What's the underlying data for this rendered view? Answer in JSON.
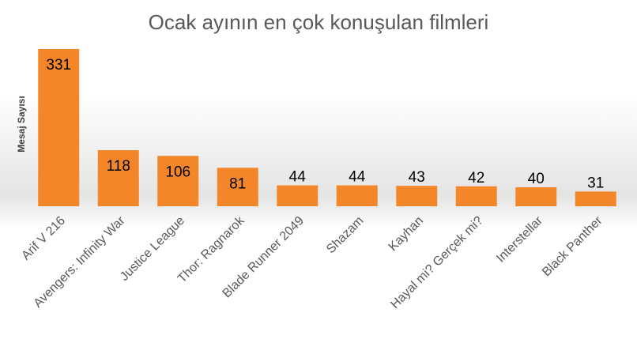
{
  "chart_data": {
    "type": "bar",
    "title": "Ocak ayının en çok konuşulan filmleri",
    "y_label": "Mesaj Sayısı",
    "categories": [
      "Arif V 216",
      "Avengers: Infinity War",
      "Justice League",
      "Thor: Ragnarok",
      "Blade Runner 2049",
      "Shazam",
      "Kayhan",
      "Hayal mi? Gerçek mi?",
      "Interstellar",
      "Black Panther"
    ],
    "values": [
      331,
      118,
      106,
      81,
      44,
      44,
      43,
      42,
      40,
      31
    ],
    "color": "#f4862a"
  }
}
